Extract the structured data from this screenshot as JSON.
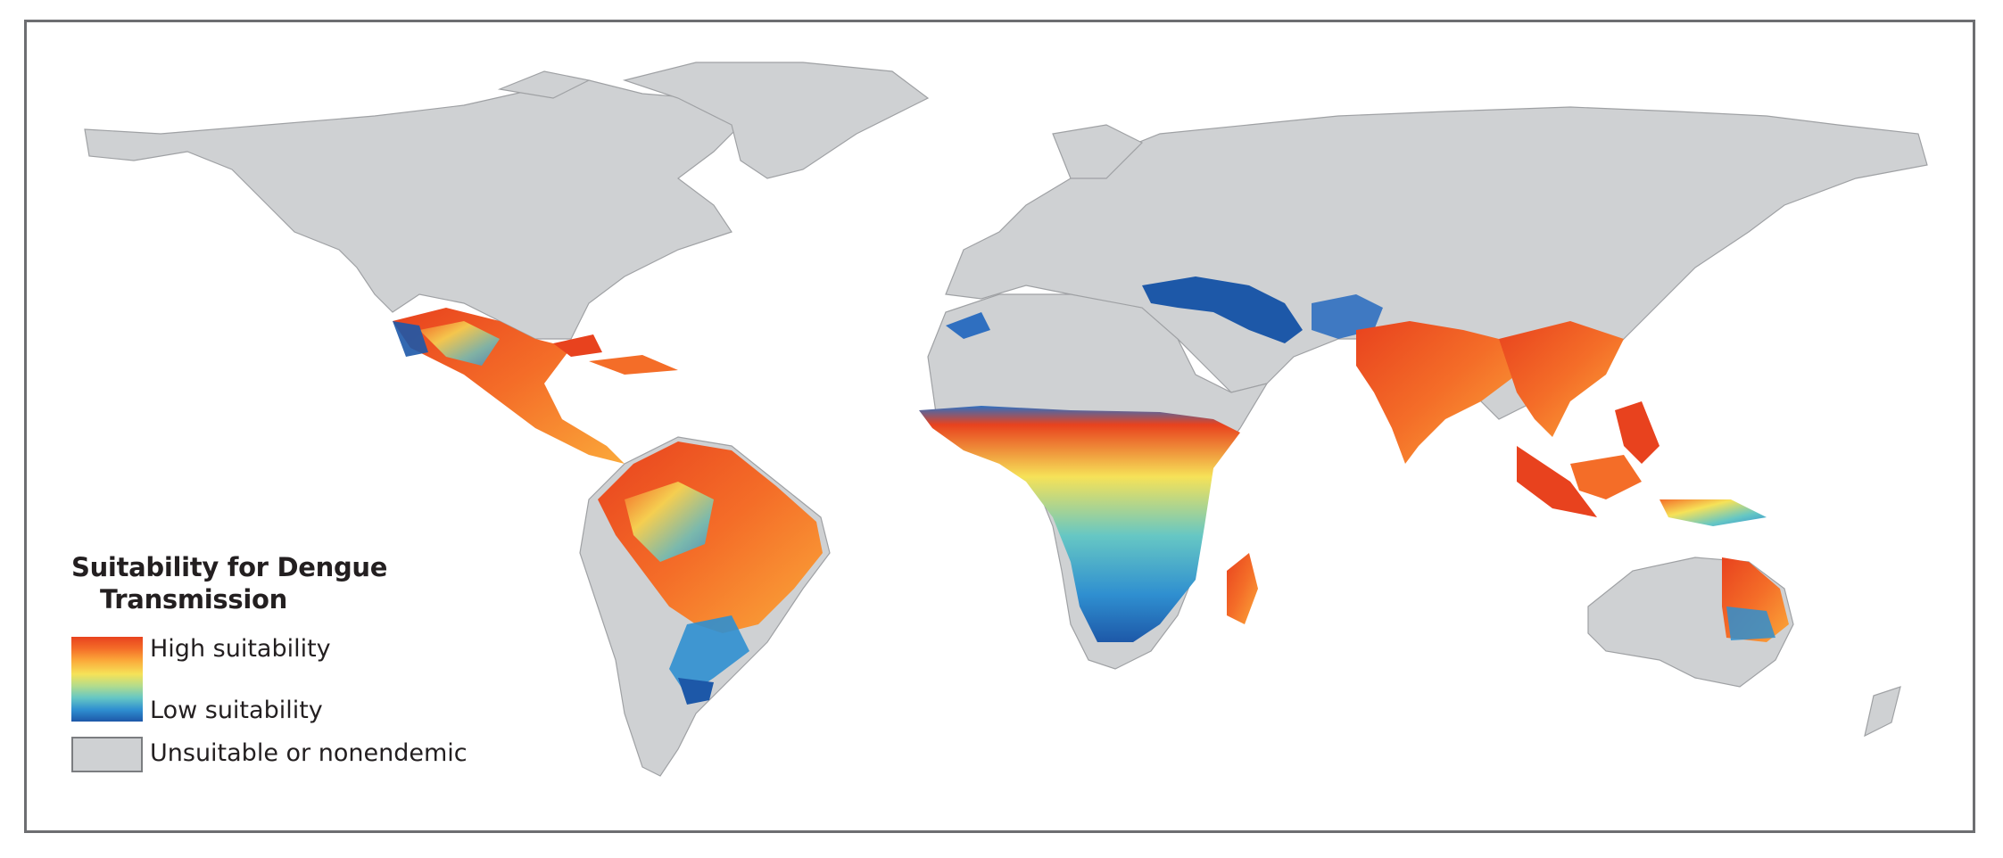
{
  "legend": {
    "title_line1": "Suitability for Dengue",
    "title_line2": "Transmission",
    "high_label": "High suitability",
    "low_label": "Low suitability",
    "unsuitable_label": "Unsuitable or nonendemic"
  },
  "colors": {
    "land": "#cfd1d3",
    "border": "#9fa1a4",
    "high": "#e8421e",
    "mid_high": "#fba93a",
    "mid": "#f6e258",
    "mid_low": "#66c7c4",
    "low": "#1d58a8",
    "frame": "#6d6e71"
  },
  "regions_depicted": [
    "Americas",
    "Africa",
    "Europe",
    "Asia",
    "Oceania"
  ]
}
